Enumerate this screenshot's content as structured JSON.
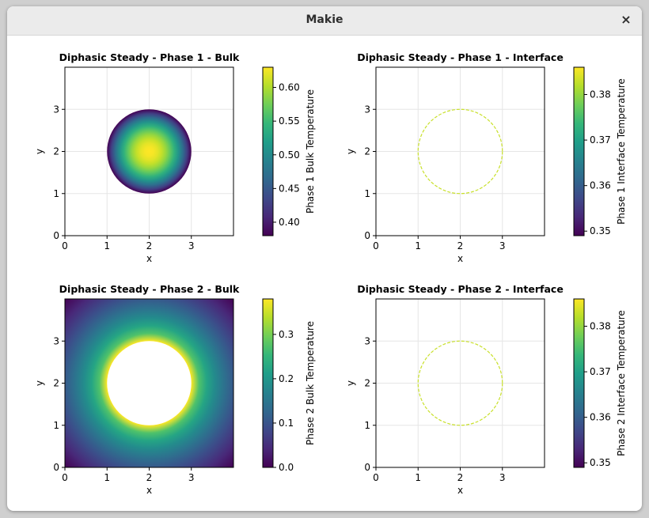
{
  "window": {
    "title": "Makie",
    "close_glyph": "×"
  },
  "colors": {
    "viridis": [
      "#440154",
      "#482878",
      "#3e4989",
      "#31688e",
      "#26828e",
      "#1f9e89",
      "#35b779",
      "#6ece58",
      "#b5de2b",
      "#fde725"
    ],
    "axis": "#000000",
    "grid": "#e6e6e6"
  },
  "chart_data": [
    {
      "type": "heatmap",
      "title": "Diphasic Steady - Phase 1 - Bulk",
      "xlabel": "x",
      "ylabel": "y",
      "xlim": [
        0,
        4
      ],
      "ylim": [
        0,
        4
      ],
      "xticks": [
        "0",
        "1",
        "2",
        "3"
      ],
      "yticks": [
        "0",
        "1",
        "2",
        "3"
      ],
      "grid": true,
      "field": {
        "shape": "disk",
        "center": [
          2,
          2
        ],
        "radius": 1,
        "region": "inside",
        "peak": 0.63,
        "edge": 0.38
      },
      "colorbar": {
        "label": "Phase 1 Bulk Temperature",
        "range": [
          0.38,
          0.63
        ],
        "ticks": [
          "0.40",
          "0.45",
          "0.50",
          "0.55",
          "0.60"
        ]
      }
    },
    {
      "type": "heatmap",
      "title": "Diphasic Steady - Phase 1 - Interface",
      "xlabel": "x",
      "ylabel": "y",
      "xlim": [
        0,
        4
      ],
      "ylim": [
        0,
        4
      ],
      "xticks": [
        "0",
        "1",
        "2",
        "3"
      ],
      "yticks": [
        "0",
        "1",
        "2",
        "3"
      ],
      "grid": true,
      "field": {
        "shape": "ring",
        "center": [
          2,
          2
        ],
        "radius": 1,
        "value": 0.383
      },
      "colorbar": {
        "label": "Phase 1 Interface Temperature",
        "range": [
          0.349,
          0.386
        ],
        "ticks": [
          "0.35",
          "0.36",
          "0.37",
          "0.38"
        ]
      }
    },
    {
      "type": "heatmap",
      "title": "Diphasic Steady - Phase 2 - Bulk",
      "xlabel": "x",
      "ylabel": "y",
      "xlim": [
        0,
        4
      ],
      "ylim": [
        0,
        4
      ],
      "xticks": [
        "0",
        "1",
        "2",
        "3"
      ],
      "yticks": [
        "0",
        "1",
        "2",
        "3"
      ],
      "grid": true,
      "field": {
        "shape": "disk",
        "center": [
          2,
          2
        ],
        "radius": 1,
        "region": "outside",
        "peak": 0.38,
        "edge": 0.0
      },
      "colorbar": {
        "label": "Phase 2 Bulk Temperature",
        "range": [
          0.0,
          0.38
        ],
        "ticks": [
          "0.0",
          "0.1",
          "0.2",
          "0.3"
        ]
      }
    },
    {
      "type": "heatmap",
      "title": "Diphasic Steady - Phase 2 - Interface",
      "xlabel": "x",
      "ylabel": "y",
      "xlim": [
        0,
        4
      ],
      "ylim": [
        0,
        4
      ],
      "xticks": [
        "0",
        "1",
        "2",
        "3"
      ],
      "yticks": [
        "0",
        "1",
        "2",
        "3"
      ],
      "grid": true,
      "field": {
        "shape": "ring",
        "center": [
          2,
          2
        ],
        "radius": 1,
        "value": 0.383
      },
      "colorbar": {
        "label": "Phase 2 Interface Temperature",
        "range": [
          0.349,
          0.386
        ],
        "ticks": [
          "0.35",
          "0.36",
          "0.37",
          "0.38"
        ]
      }
    }
  ]
}
